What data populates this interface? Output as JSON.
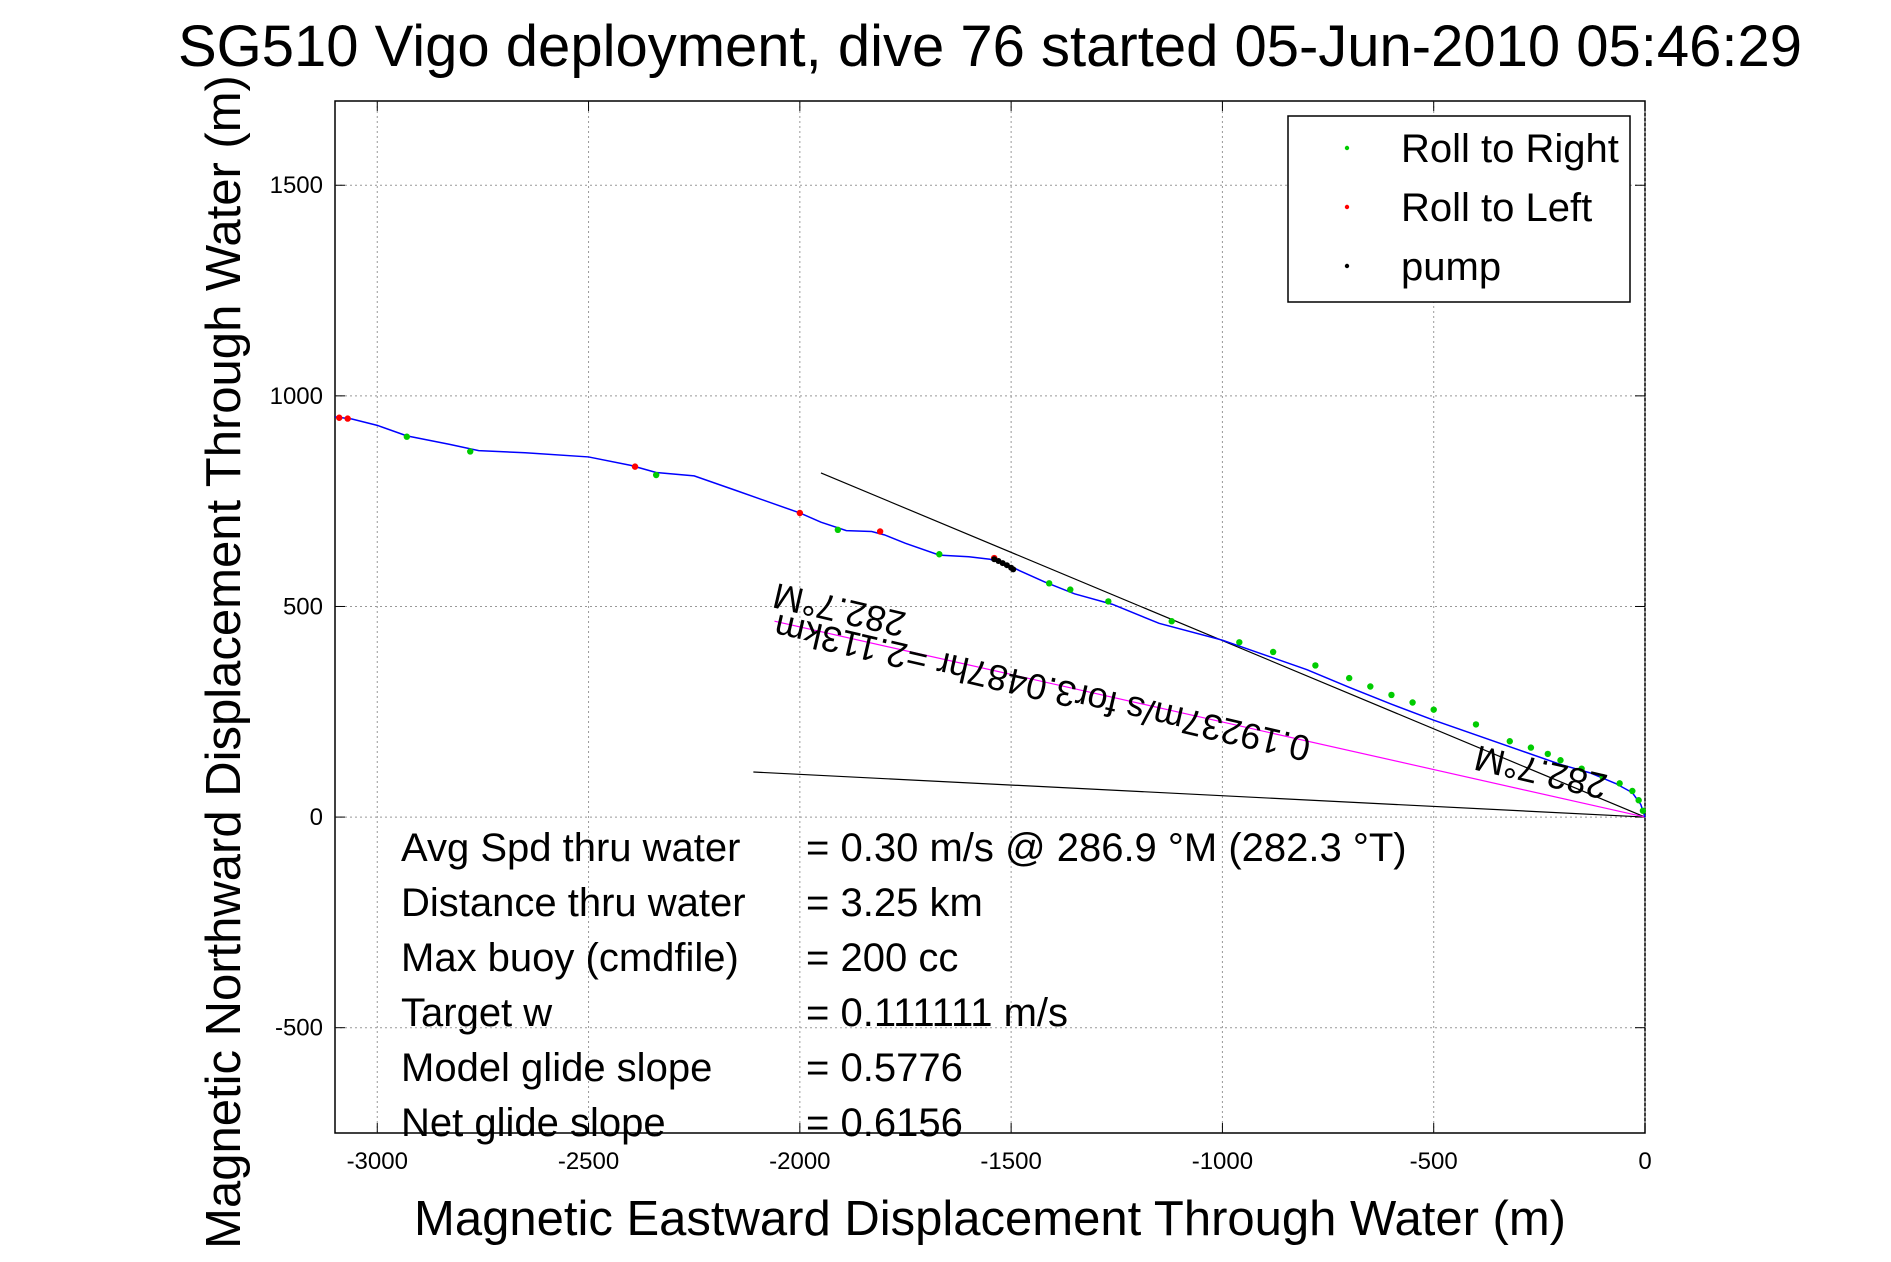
{
  "chart_data": {
    "type": "line",
    "title": "SG510 Vigo deployment, dive 76 started 05-Jun-2010 05:46:29",
    "xlabel": "Magnetic Eastward Displacement Through Water (m)",
    "ylabel": "Magnetic Northward Displacement Through Water (m)",
    "xlim": [
      -3100,
      0
    ],
    "ylim": [
      -750,
      1700
    ],
    "xticks": [
      -3000,
      -2500,
      -2000,
      -1500,
      -1000,
      -500,
      0
    ],
    "xtick_labels": [
      "-3000",
      "-2500",
      "-2000",
      "-1500",
      "-1000",
      "-500",
      "0"
    ],
    "yticks": [
      -500,
      0,
      500,
      1000,
      1500
    ],
    "ytick_labels": [
      "-500",
      "0",
      "500",
      "1000",
      "1500"
    ],
    "grid": true,
    "legend": {
      "position": "top-right",
      "entries": [
        {
          "label": "Roll to Right",
          "color": "#00cc00"
        },
        {
          "label": "Roll to Left",
          "color": "#ff0000"
        },
        {
          "label": "pump",
          "color": "#000000"
        }
      ]
    },
    "track": {
      "color": "#0000ff",
      "x": [
        -3100,
        -3060,
        -3000,
        -2930,
        -2830,
        -2760,
        -2650,
        -2500,
        -2400,
        -2340,
        -2250,
        -2150,
        -2000,
        -1950,
        -1890,
        -1830,
        -1800,
        -1750,
        -1670,
        -1600,
        -1550,
        -1510,
        -1480,
        -1420,
        -1350,
        -1260,
        -1150,
        -1000,
        -900,
        -800,
        -700,
        -600,
        -500,
        -400,
        -300,
        -200,
        -130,
        -70,
        -30,
        -10,
        0
      ],
      "y": [
        950,
        945,
        930,
        905,
        885,
        870,
        865,
        855,
        835,
        818,
        810,
        775,
        722,
        700,
        680,
        678,
        670,
        650,
        622,
        618,
        612,
        600,
        585,
        558,
        530,
        505,
        460,
        420,
        385,
        350,
        308,
        268,
        230,
        195,
        160,
        125,
        105,
        80,
        58,
        30,
        0
      ]
    },
    "markers": {
      "roll_right": {
        "x": [
          -2930,
          -2780,
          -2340,
          -1910,
          -1670,
          -1410,
          -1360,
          -1270,
          -1120,
          -960,
          -880,
          -780,
          -700,
          -650,
          -600,
          -550,
          -500,
          -400,
          -320,
          -270,
          -230,
          -200,
          -150,
          -100,
          -60,
          -30,
          -15,
          -5
        ],
        "y": [
          903,
          868,
          812,
          682,
          624,
          555,
          540,
          512,
          465,
          415,
          392,
          360,
          330,
          310,
          290,
          272,
          255,
          220,
          180,
          165,
          150,
          135,
          115,
          95,
          80,
          62,
          40,
          15
        ]
      },
      "roll_left": {
        "x": [
          -3090,
          -3070,
          -2390,
          -2000,
          -1810,
          -1540
        ],
        "y": [
          948,
          946,
          832,
          722,
          678,
          615
        ]
      },
      "pump": {
        "x": [
          -1540,
          -1530,
          -1520,
          -1510,
          -1500,
          -1495
        ],
        "y": [
          612,
          608,
          603,
          598,
          592,
          588
        ]
      }
    },
    "reference_lines": [
      {
        "color": "#000000",
        "x": [
          -1950,
          0
        ],
        "y": [
          817,
          0
        ]
      },
      {
        "color": "#000000",
        "x": [
          -2110,
          0
        ],
        "y": [
          107,
          0
        ]
      },
      {
        "color": "#ff00ff",
        "x": [
          -2060,
          0
        ],
        "y": [
          465,
          0
        ]
      }
    ],
    "rotated_annotations": [
      {
        "text": "282.7°M",
        "x": -1900,
        "y": 520,
        "angle": 193
      },
      {
        "text": "0.19237m/s for3.0487hr =2.113km",
        "x": -1420,
        "y": 335,
        "angle": 193
      },
      {
        "text": "282.7°M",
        "x": -240,
        "y": 135,
        "angle": 193
      }
    ],
    "stats": [
      {
        "label": "Avg Spd thru water",
        "value": "=  0.30 m/s @ 286.9 °M (282.3 °T)"
      },
      {
        "label": "Distance thru water",
        "value": "=  3.25 km"
      },
      {
        "label": "Max buoy (cmdfile)",
        "value": "= 200 cc"
      },
      {
        "label": "Target w",
        "value": "= 0.111111 m/s"
      },
      {
        "label": "Model glide slope",
        "value": "= 0.5776"
      },
      {
        "label": "Net glide slope",
        "value": "= 0.6156"
      }
    ]
  }
}
